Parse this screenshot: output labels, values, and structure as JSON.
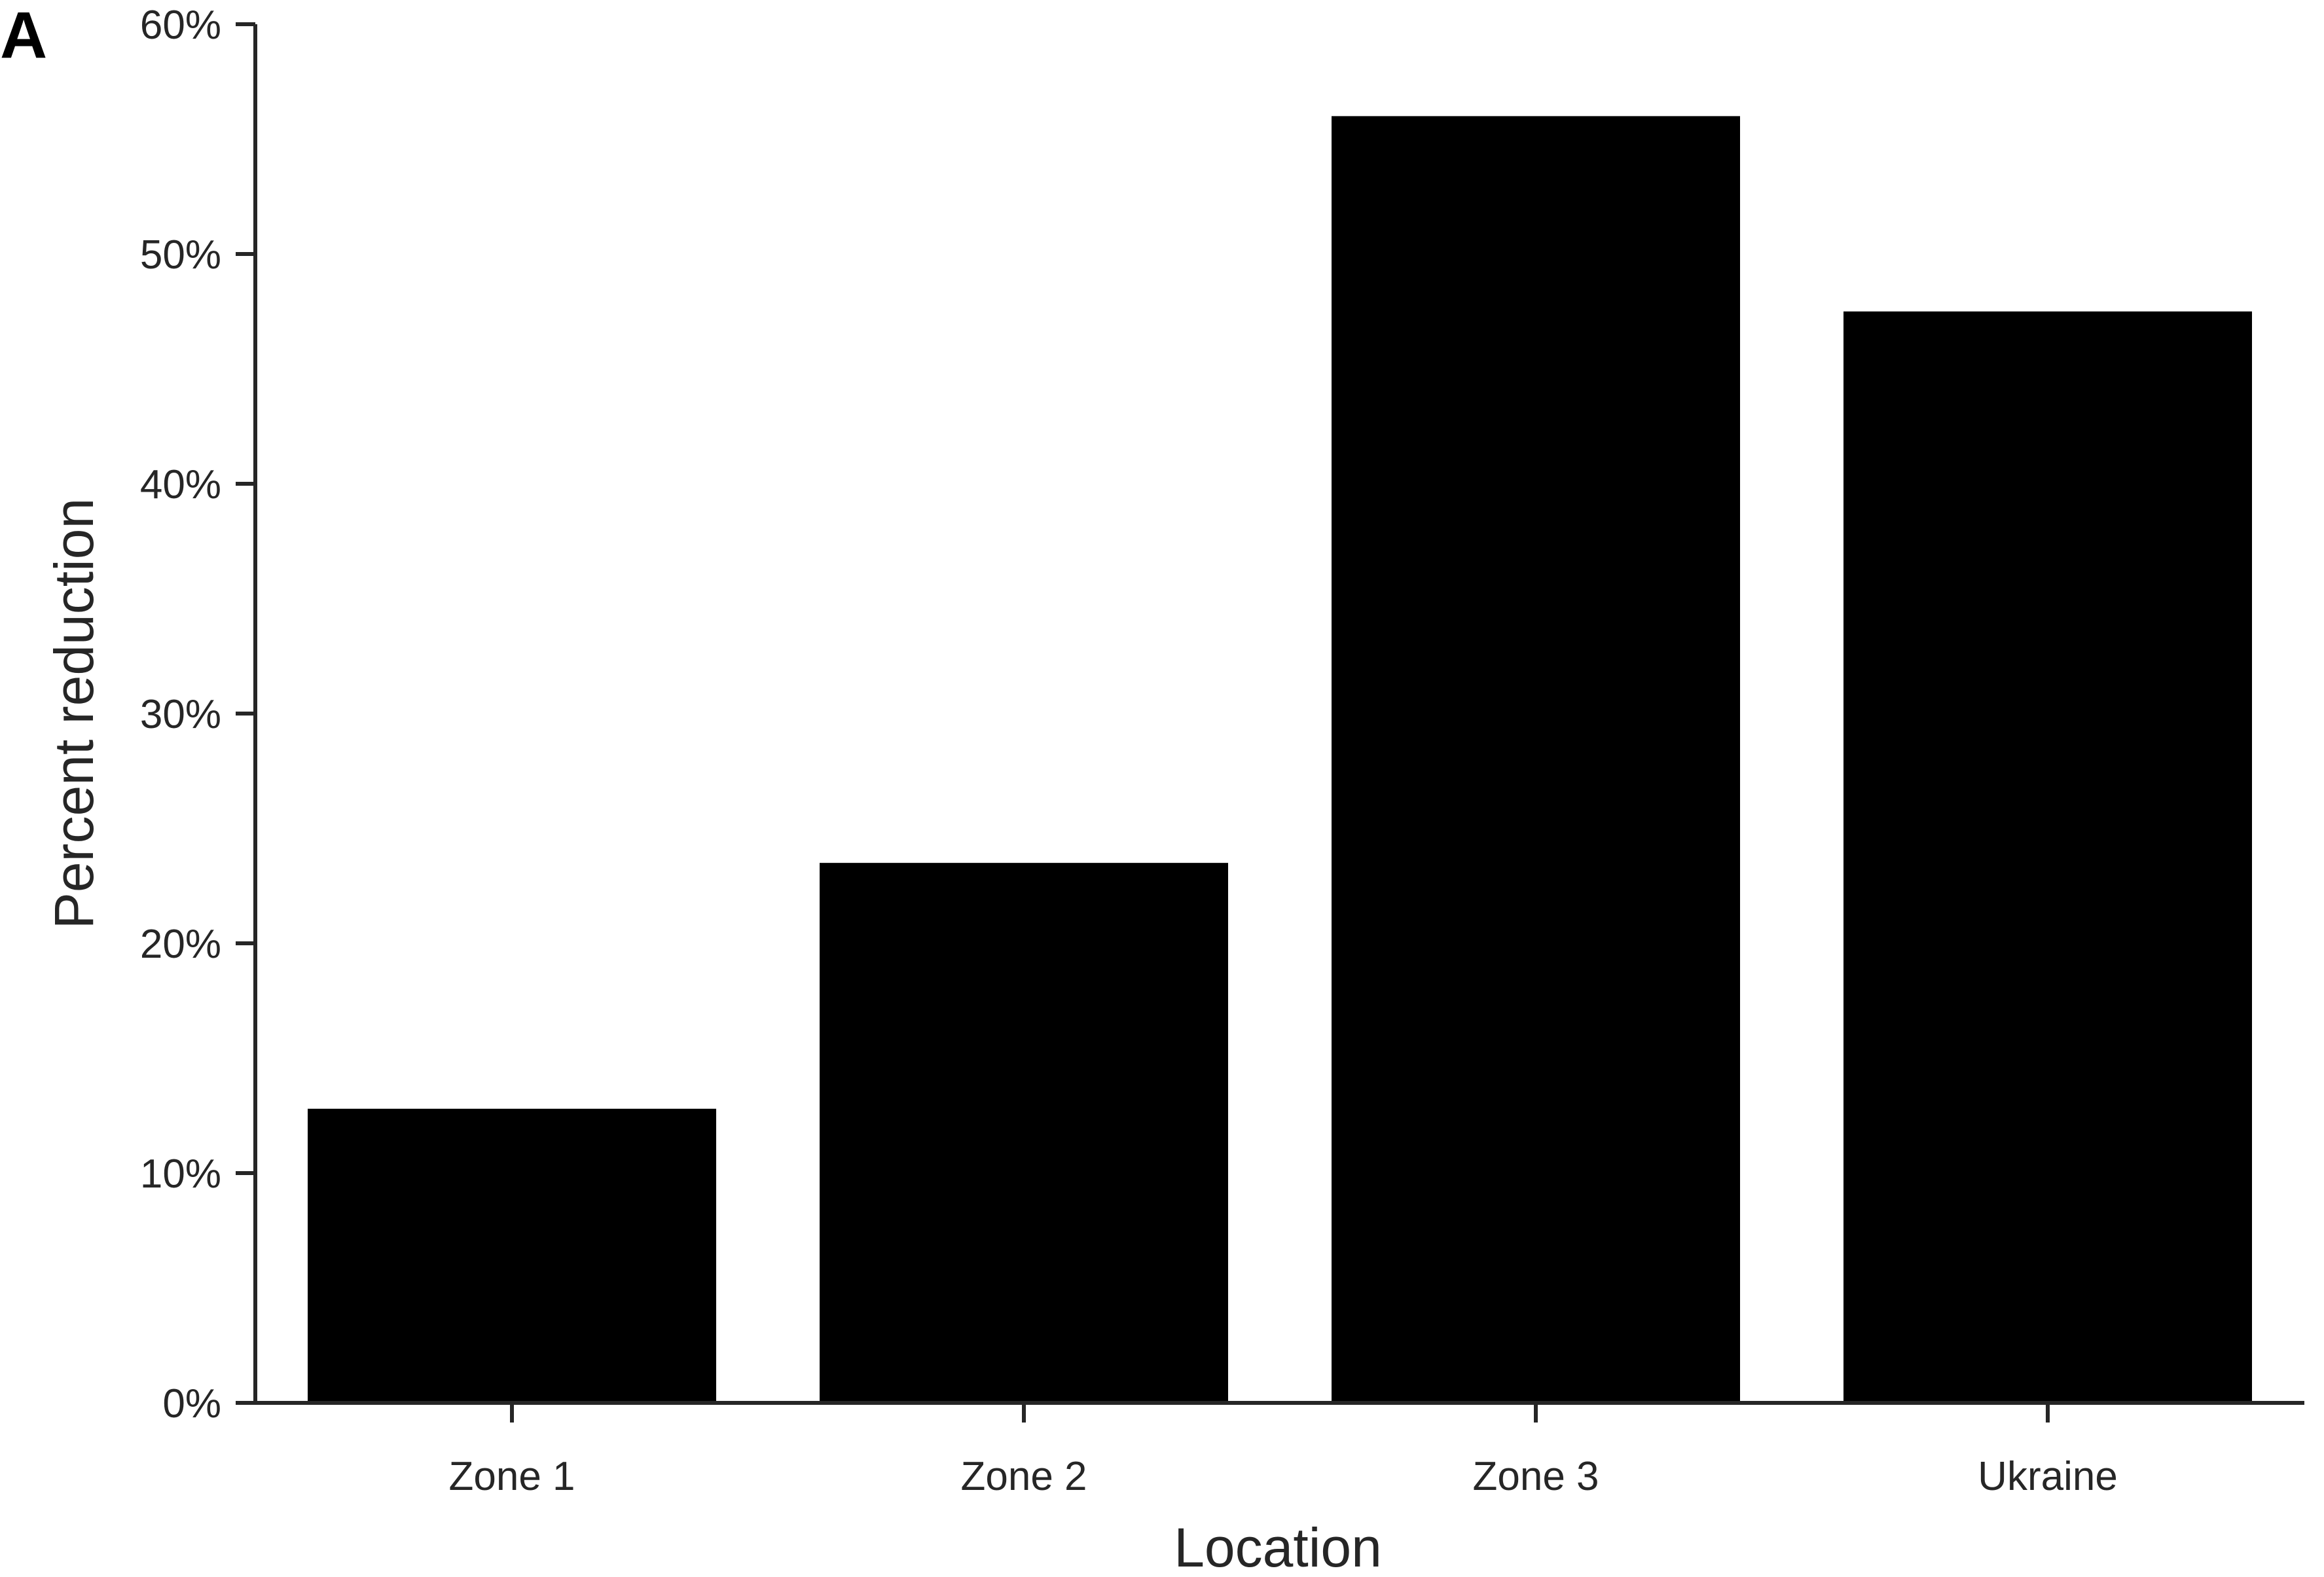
{
  "panel_label": "A",
  "chart_data": {
    "type": "bar",
    "title": "",
    "xlabel": "Location",
    "ylabel": "Percent reduction",
    "categories": [
      "Zone 1",
      "Zone 2",
      "Zone 3",
      "Ukraine"
    ],
    "values": [
      12.8,
      23.5,
      56.0,
      47.5
    ],
    "ylim": [
      0,
      60
    ],
    "yticks": [
      0,
      10,
      20,
      30,
      40,
      50,
      60
    ],
    "ytick_labels": [
      "0%",
      "10%",
      "20%",
      "30%",
      "40%",
      "50%",
      "60%"
    ],
    "bar_color": "#000000",
    "axis_color": "#262626",
    "grid": false,
    "legend": "none"
  }
}
